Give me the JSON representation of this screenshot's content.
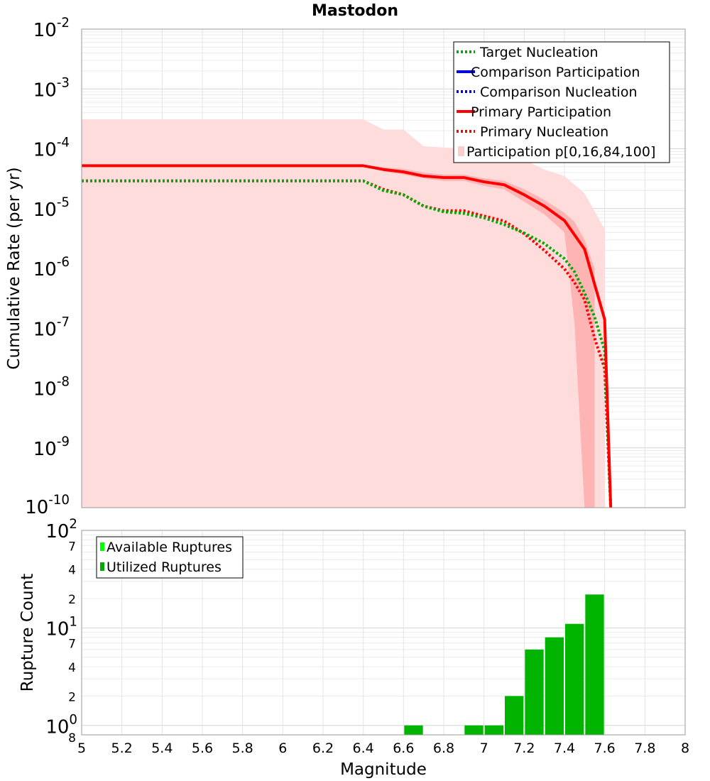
{
  "chart_data": [
    {
      "type": "line",
      "title": "Mastodon",
      "xlabel": "",
      "ylabel": "Cumulative Rate (per yr)",
      "xlim": [
        5,
        8
      ],
      "ylim": [
        1e-10,
        0.01
      ],
      "yscale": "log",
      "grid": true,
      "legend_position": "top-right",
      "y_ticks": [
        {
          "base": "10",
          "exp": "-2",
          "value": 0.01
        },
        {
          "base": "10",
          "exp": "-3",
          "value": 0.001
        },
        {
          "base": "10",
          "exp": "-4",
          "value": 0.0001
        },
        {
          "base": "10",
          "exp": "-5",
          "value": 1e-05
        },
        {
          "base": "10",
          "exp": "-6",
          "value": 1e-06
        },
        {
          "base": "10",
          "exp": "-7",
          "value": 1e-07
        },
        {
          "base": "10",
          "exp": "-8",
          "value": 1e-08
        },
        {
          "base": "10",
          "exp": "-9",
          "value": 1e-09
        },
        {
          "base": "10",
          "exp": "-10",
          "value": 1e-10
        }
      ],
      "legend": [
        {
          "label": "Target Nucleation",
          "color": "#00aa00",
          "style": "dotted"
        },
        {
          "label": "Comparison Participation",
          "color": "#0000ff",
          "style": "solid"
        },
        {
          "label": "Comparison Nucleation",
          "color": "#0000ff",
          "style": "dotted"
        },
        {
          "label": "Primary Participation",
          "color": "#ff0000",
          "style": "solid"
        },
        {
          "label": "Primary Nucleation",
          "color": "#ff0000",
          "style": "dotted"
        },
        {
          "label": "Participation p[0,16,84,100]",
          "color": "#ffcccc",
          "style": "fill"
        }
      ],
      "series": [
        {
          "name": "Primary Participation",
          "color": "#ff0000",
          "style": "solid",
          "x": [
            5.0,
            6.4,
            6.5,
            6.6,
            6.7,
            6.8,
            6.9,
            7.0,
            7.1,
            7.2,
            7.3,
            7.4,
            7.5,
            7.6,
            7.63
          ],
          "y": [
            5.2e-05,
            5.2e-05,
            4.5e-05,
            4.1e-05,
            3.5e-05,
            3.3e-05,
            3.3e-05,
            2.8e-05,
            2.5e-05,
            1.7e-05,
            1.1e-05,
            6.3e-06,
            2.1e-06,
            1.4e-07,
            1e-10
          ]
        },
        {
          "name": "Primary Nucleation",
          "color": "#ff0000",
          "style": "dotted",
          "x": [
            5.0,
            6.4,
            6.5,
            6.6,
            6.7,
            6.8,
            6.9,
            7.0,
            7.1,
            7.2,
            7.3,
            7.4,
            7.45,
            7.5,
            7.55,
            7.6,
            7.63
          ],
          "y": [
            2.9e-05,
            2.9e-05,
            2.1e-05,
            1.7e-05,
            1.1e-05,
            9.2e-06,
            9.2e-06,
            7.5e-06,
            6.2e-06,
            3.8e-06,
            2e-06,
            9.8e-07,
            5.8e-07,
            3e-07,
            6.8e-08,
            2.1e-08,
            1e-10
          ]
        },
        {
          "name": "Target Nucleation",
          "color": "#00aa00",
          "style": "dotted",
          "x": [
            5.0,
            6.4,
            6.5,
            6.6,
            6.7,
            6.8,
            6.9,
            7.0,
            7.1,
            7.2,
            7.3,
            7.4,
            7.45,
            7.5,
            7.55,
            7.6,
            7.63
          ],
          "y": [
            2.9e-05,
            2.9e-05,
            2e-05,
            1.7e-05,
            1.1e-05,
            8.8e-06,
            8.3e-06,
            7e-06,
            5.4e-06,
            3.9e-06,
            2.6e-06,
            1.45e-06,
            8.8e-07,
            3.9e-07,
            1.55e-07,
            4.2e-08,
            1e-10
          ]
        }
      ],
      "bands": [
        {
          "name": "Participation p[0,100]",
          "color": "#ffdcdc",
          "x": [
            5.0,
            6.4,
            6.5,
            6.6,
            6.7,
            6.8,
            6.9,
            7.0,
            7.1,
            7.2,
            7.3,
            7.4,
            7.5,
            7.6
          ],
          "upper": [
            0.00031,
            0.00031,
            0.00021,
            0.00021,
            0.00011,
            0.000105,
            0.0001,
            0.0001,
            9e-05,
            6.5e-05,
            4.5e-05,
            3.5e-05,
            1.8e-05,
            4.5e-06
          ],
          "lower": [
            1e-10,
            1e-10,
            1e-10,
            1e-10,
            1e-10,
            1e-10,
            1e-10,
            1e-10,
            1e-10,
            1e-10,
            1e-10,
            1e-10,
            1e-10,
            1e-10
          ]
        },
        {
          "name": "Participation p[16,84]",
          "color": "#ffb4b4",
          "x": [
            6.4,
            6.5,
            6.6,
            6.7,
            6.8,
            6.9,
            7.0,
            7.1,
            7.2,
            7.3,
            7.4,
            7.45,
            7.5,
            7.55
          ],
          "upper": [
            5.4e-05,
            4.9e-05,
            4.6e-05,
            4e-05,
            3.7e-05,
            3.7e-05,
            3.2e-05,
            2.9e-05,
            2.1e-05,
            1.4e-05,
            8.5e-06,
            6e-06,
            3e-06,
            1e-06
          ],
          "lower": [
            5e-05,
            4.2e-05,
            3.7e-05,
            3.2e-05,
            2.9e-05,
            2.9e-05,
            2.4e-05,
            2.1e-05,
            1.3e-05,
            8e-06,
            4e-06,
            1.2e-07,
            1e-10,
            1e-10
          ]
        }
      ]
    },
    {
      "type": "bar",
      "title": "",
      "xlabel": "Magnitude",
      "ylabel": "Rupture Count",
      "xlim": [
        5,
        8
      ],
      "ylim": [
        0.8,
        100
      ],
      "yscale": "log",
      "grid": true,
      "legend_position": "top-left",
      "x_ticks": [
        "5",
        "5.2",
        "5.4",
        "5.6",
        "5.8",
        "6",
        "6.2",
        "6.4",
        "6.6",
        "6.8",
        "7",
        "7.2",
        "7.4",
        "7.6",
        "7.8",
        "8"
      ],
      "y_major_ticks": [
        {
          "base": "10",
          "exp": "2",
          "value": 100
        },
        {
          "base": "10",
          "exp": "1",
          "value": 10
        },
        {
          "base": "10",
          "exp": "0",
          "value": 1
        }
      ],
      "y_minor_ticks": [
        {
          "label": "7",
          "value": 70
        },
        {
          "label": "4",
          "value": 40
        },
        {
          "label": "2",
          "value": 20
        },
        {
          "label": "7",
          "value": 7
        },
        {
          "label": "4",
          "value": 4
        },
        {
          "label": "2",
          "value": 2
        },
        {
          "label": "8",
          "value": 0.8
        }
      ],
      "legend": [
        {
          "label": "Available Ruptures",
          "color": "#00ff00"
        },
        {
          "label": "Utilized Ruptures",
          "color": "#00aa00"
        }
      ],
      "bin_width": 0.1,
      "series": [
        {
          "name": "Available Ruptures",
          "color": "#00ff00",
          "bin_start": [],
          "values": []
        },
        {
          "name": "Utilized Ruptures",
          "color": "#00b400",
          "bin_start": [
            6.6,
            6.9,
            7.0,
            7.1,
            7.2,
            7.3,
            7.4,
            7.5
          ],
          "values": [
            1,
            1,
            1,
            2,
            6,
            8,
            11,
            22
          ]
        }
      ]
    }
  ]
}
